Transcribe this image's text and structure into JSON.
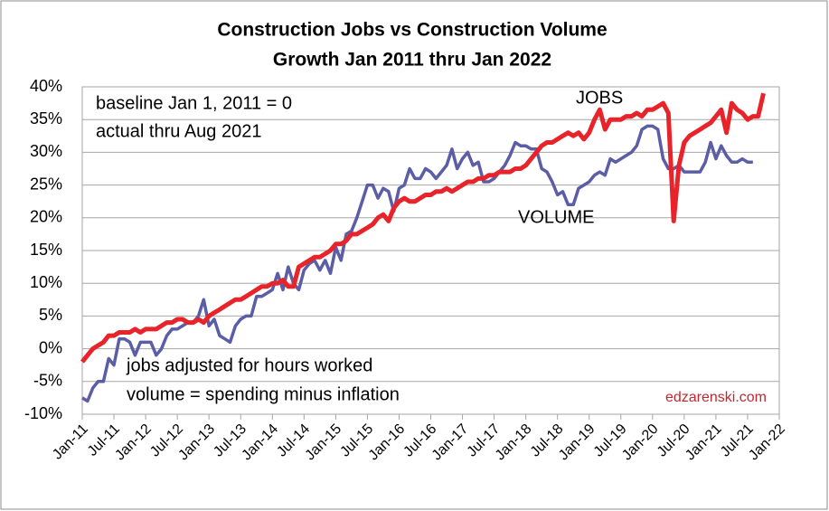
{
  "chart_data": {
    "type": "line",
    "title": "Construction Jobs vs Construction Volume",
    "subtitle": "Growth Jan 2011 thru Jan 2022",
    "annotations": [
      "JOBS",
      "VOLUME",
      "baseline Jan 1, 2011 = 0",
      "actual thru Aug 2021",
      "jobs adjusted for hours worked",
      "volume = spending minus inflation",
      "edzarenski.com"
    ],
    "x": [
      "2011-01",
      "2011-02",
      "2011-03",
      "2011-04",
      "2011-05",
      "2011-06",
      "2011-07",
      "2011-08",
      "2011-09",
      "2011-10",
      "2011-11",
      "2011-12",
      "2012-01",
      "2012-02",
      "2012-03",
      "2012-04",
      "2012-05",
      "2012-06",
      "2012-07",
      "2012-08",
      "2012-09",
      "2012-10",
      "2012-11",
      "2012-12",
      "2013-01",
      "2013-02",
      "2013-03",
      "2013-04",
      "2013-05",
      "2013-06",
      "2013-07",
      "2013-08",
      "2013-09",
      "2013-10",
      "2013-11",
      "2013-12",
      "2014-01",
      "2014-02",
      "2014-03",
      "2014-04",
      "2014-05",
      "2014-06",
      "2014-07",
      "2014-08",
      "2014-09",
      "2014-10",
      "2014-11",
      "2014-12",
      "2015-01",
      "2015-02",
      "2015-03",
      "2015-04",
      "2015-05",
      "2015-06",
      "2015-07",
      "2015-08",
      "2015-09",
      "2015-10",
      "2015-11",
      "2015-12",
      "2016-01",
      "2016-02",
      "2016-03",
      "2016-04",
      "2016-05",
      "2016-06",
      "2016-07",
      "2016-08",
      "2016-09",
      "2016-10",
      "2016-11",
      "2016-12",
      "2017-01",
      "2017-02",
      "2017-03",
      "2017-04",
      "2017-05",
      "2017-06",
      "2017-07",
      "2017-08",
      "2017-09",
      "2017-10",
      "2017-11",
      "2017-12",
      "2018-01",
      "2018-02",
      "2018-03",
      "2018-04",
      "2018-05",
      "2018-06",
      "2018-07",
      "2018-08",
      "2018-09",
      "2018-10",
      "2018-11",
      "2018-12",
      "2019-01",
      "2019-02",
      "2019-03",
      "2019-04",
      "2019-05",
      "2019-06",
      "2019-07",
      "2019-08",
      "2019-09",
      "2019-10",
      "2019-11",
      "2019-12",
      "2020-01",
      "2020-02",
      "2020-03",
      "2020-04",
      "2020-05",
      "2020-06",
      "2020-07",
      "2020-08",
      "2020-09",
      "2020-10",
      "2020-11",
      "2020-12",
      "2021-01",
      "2021-02",
      "2021-03",
      "2021-04",
      "2021-05",
      "2021-06",
      "2021-07",
      "2021-08",
      "2021-09",
      "2021-10"
    ],
    "series": [
      {
        "name": "JOBS",
        "color": "#e8232a",
        "values": [
          -2,
          -1,
          0,
          0.5,
          1,
          2,
          2,
          2.5,
          2.5,
          2.5,
          3,
          2.5,
          3,
          3,
          3,
          3.5,
          4,
          4,
          4.5,
          4.5,
          4,
          4,
          4.5,
          4,
          5,
          5.5,
          6,
          6.5,
          7,
          7.5,
          7.5,
          8,
          8.5,
          9,
          9.5,
          9.5,
          10,
          10,
          10.5,
          9.5,
          9.5,
          12.5,
          13,
          13.5,
          14,
          14,
          14.5,
          15,
          16,
          16,
          16.5,
          17.5,
          17.5,
          18,
          18.5,
          19,
          20,
          20.5,
          19.5,
          21.5,
          22.5,
          23,
          22.5,
          22.5,
          23,
          23.5,
          23.5,
          24,
          24,
          24.5,
          24,
          24.5,
          25,
          25.5,
          25.5,
          26,
          26,
          26.5,
          26.5,
          27,
          27,
          27,
          27.5,
          27.5,
          28,
          29,
          30,
          31,
          31.5,
          31.5,
          32,
          32.5,
          33,
          32.5,
          33,
          32,
          33,
          35,
          36.5,
          33.5,
          35,
          35,
          35,
          35.5,
          35.5,
          36,
          35.5,
          36.5,
          36.5,
          37,
          37.5,
          36,
          19.5,
          28,
          31.5,
          32.5,
          33,
          33.5,
          34,
          34.5,
          35.5,
          36.5,
          33,
          37.5,
          36.5,
          36,
          35,
          35.5,
          35.5,
          39
        ]
      },
      {
        "name": "VOLUME",
        "color": "#5b5ea6",
        "values": [
          -7.5,
          -8,
          -6,
          -5,
          -5,
          -1.5,
          -2.5,
          1.5,
          1.5,
          1,
          -1,
          1,
          1,
          1,
          -1,
          0,
          2,
          3,
          3,
          3.5,
          4,
          4,
          5,
          7.5,
          3.5,
          4.5,
          2,
          1.5,
          1,
          3.5,
          4.5,
          5,
          5,
          8,
          8,
          8.5,
          9,
          11.5,
          9,
          12.5,
          10,
          9,
          12,
          13,
          13.5,
          12,
          13.5,
          11.5,
          15.5,
          13.5,
          17.5,
          18,
          20,
          22.5,
          25,
          25,
          23,
          24.5,
          24,
          21,
          24.5,
          25,
          27.5,
          26,
          26,
          27.5,
          27,
          26,
          27,
          28,
          30.5,
          27.5,
          29,
          30,
          28,
          28.5,
          25.5,
          25.5,
          26,
          27,
          28,
          29.5,
          31.5,
          31,
          31,
          30.5,
          30.5,
          27.5,
          27,
          25.5,
          23.5,
          24,
          22,
          22,
          24.5,
          25,
          25.5,
          26.5,
          27,
          26.5,
          29,
          28.5,
          29,
          29.5,
          30,
          31,
          33.5,
          34,
          34,
          33.5,
          29,
          27.5,
          27.5,
          28,
          27,
          27,
          27,
          27,
          28.5,
          31.5,
          29,
          31,
          29.5,
          28.5,
          28.5,
          29,
          28.5,
          28.5,
          null,
          null
        ]
      }
    ],
    "xlim": [
      "2011-01",
      "2022-01"
    ],
    "xticks": [
      {
        "value": "2011-01",
        "label": "Jan-11"
      },
      {
        "value": "2011-07",
        "label": "Jul-11"
      },
      {
        "value": "2012-01",
        "label": "Jan-12"
      },
      {
        "value": "2012-07",
        "label": "Jul-12"
      },
      {
        "value": "2013-01",
        "label": "Jan-13"
      },
      {
        "value": "2013-07",
        "label": "Jul-13"
      },
      {
        "value": "2014-01",
        "label": "Jan-14"
      },
      {
        "value": "2014-07",
        "label": "Jul-14"
      },
      {
        "value": "2015-01",
        "label": "Jan-15"
      },
      {
        "value": "2015-07",
        "label": "Jul-15"
      },
      {
        "value": "2016-01",
        "label": "Jan-16"
      },
      {
        "value": "2016-07",
        "label": "Jul-16"
      },
      {
        "value": "2017-01",
        "label": "Jan-17"
      },
      {
        "value": "2017-07",
        "label": "Jul-17"
      },
      {
        "value": "2018-01",
        "label": "Jan-18"
      },
      {
        "value": "2018-07",
        "label": "Jul-18"
      },
      {
        "value": "2019-01",
        "label": "Jan-19"
      },
      {
        "value": "2019-07",
        "label": "Jul-19"
      },
      {
        "value": "2020-01",
        "label": "Jan-20"
      },
      {
        "value": "2020-07",
        "label": "Jul-20"
      },
      {
        "value": "2021-01",
        "label": "Jan-21"
      },
      {
        "value": "2021-07",
        "label": "Jul-21"
      },
      {
        "value": "2022-01",
        "label": "Jan-22"
      }
    ],
    "ylim": [
      -10,
      40
    ],
    "yticks": [
      {
        "value": -10,
        "label": "-10%"
      },
      {
        "value": -5,
        "label": "-5%"
      },
      {
        "value": 0,
        "label": "0%"
      },
      {
        "value": 5,
        "label": "5%"
      },
      {
        "value": 10,
        "label": "10%"
      },
      {
        "value": 15,
        "label": "15%"
      },
      {
        "value": 20,
        "label": "20%"
      },
      {
        "value": 25,
        "label": "25%"
      },
      {
        "value": 30,
        "label": "30%"
      },
      {
        "value": 35,
        "label": "35%"
      },
      {
        "value": 40,
        "label": "40%"
      }
    ],
    "grid": true
  }
}
